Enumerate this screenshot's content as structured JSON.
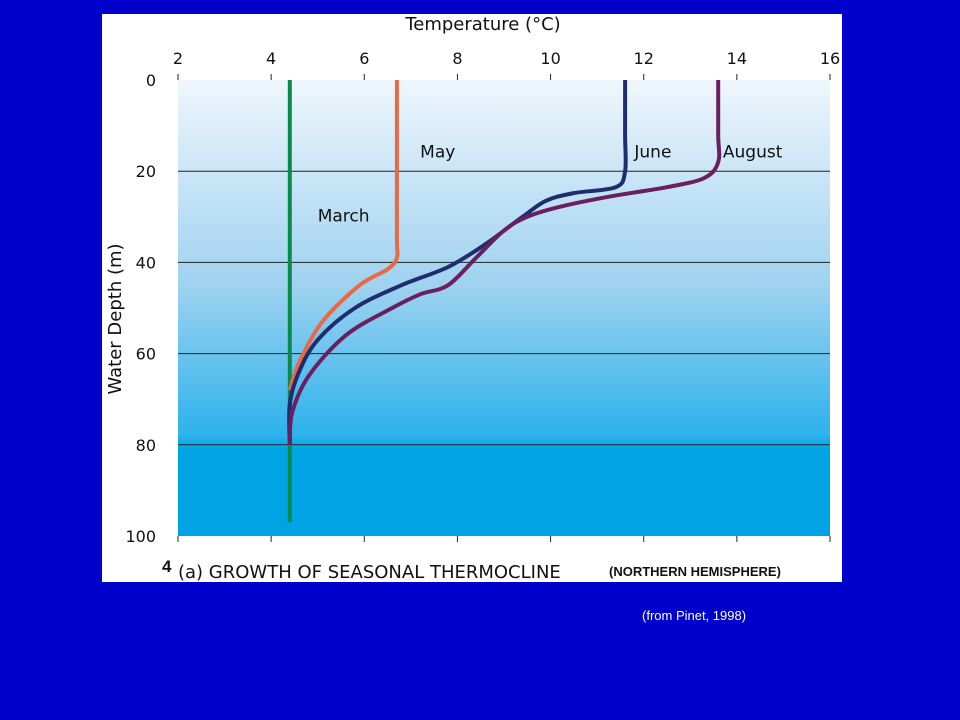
{
  "slide": {
    "figure_number": "4",
    "caption": "(a) GROWTH OF SEASONAL THERMOCLINE",
    "caption_suffix": "(NORTHERN HEMISPHERE)",
    "credit": "(from Pinet, 1998)",
    "background_color": "#0000cc"
  },
  "chart_data": {
    "type": "line",
    "xlabel": "Temperature (°C)",
    "ylabel": "Water Depth (m)",
    "xlim": [
      2,
      16
    ],
    "ylim": [
      0,
      100
    ],
    "y_inverted": true,
    "x_axis_position": "top",
    "x_ticks": [
      2,
      4,
      6,
      8,
      10,
      12,
      14,
      16
    ],
    "y_ticks": [
      0,
      20,
      40,
      60,
      80,
      100
    ],
    "grid": "horizontal",
    "background": {
      "type": "vertical-gradient",
      "colors": [
        "#eef6fc",
        "#9fd2f0",
        "#2cb2ec",
        "#00a4e4"
      ]
    },
    "series": [
      {
        "name": "March",
        "color": "#0a8a4a",
        "label_at": [
          5.0,
          31
        ],
        "points": [
          [
            4.4,
            0
          ],
          [
            4.4,
            20
          ],
          [
            4.4,
            40
          ],
          [
            4.4,
            60
          ],
          [
            4.4,
            80
          ],
          [
            4.4,
            97
          ]
        ]
      },
      {
        "name": "May",
        "color": "#e86a44",
        "label_at": [
          7.2,
          17
        ],
        "points": [
          [
            6.7,
            0
          ],
          [
            6.7,
            20
          ],
          [
            6.7,
            35
          ],
          [
            6.7,
            39
          ],
          [
            6.5,
            41.5
          ],
          [
            5.9,
            45
          ],
          [
            5.1,
            53
          ],
          [
            4.6,
            62
          ],
          [
            4.4,
            68
          ]
        ]
      },
      {
        "name": "June",
        "color": "#1f2d6e",
        "label_at": [
          11.8,
          17
        ],
        "points": [
          [
            11.6,
            0
          ],
          [
            11.6,
            12
          ],
          [
            11.6,
            20
          ],
          [
            11.4,
            23.5
          ],
          [
            10.5,
            24.8
          ],
          [
            9.9,
            26.5
          ],
          [
            9.4,
            30
          ],
          [
            8.6,
            36
          ],
          [
            7.8,
            41
          ],
          [
            6.8,
            45
          ],
          [
            5.8,
            50
          ],
          [
            5.0,
            57
          ],
          [
            4.6,
            64
          ],
          [
            4.4,
            71
          ],
          [
            4.4,
            80
          ]
        ]
      },
      {
        "name": "August",
        "color": "#6b1f5e",
        "label_at": [
          13.7,
          17
        ],
        "points": [
          [
            13.6,
            0
          ],
          [
            13.6,
            12
          ],
          [
            13.6,
            18
          ],
          [
            13.3,
            21.5
          ],
          [
            12.5,
            23.5
          ],
          [
            11.3,
            25.5
          ],
          [
            10.2,
            27.8
          ],
          [
            9.5,
            30
          ],
          [
            9.0,
            33
          ],
          [
            8.4,
            39
          ],
          [
            7.8,
            45
          ],
          [
            7.2,
            47
          ],
          [
            6.6,
            50
          ],
          [
            5.6,
            56
          ],
          [
            4.8,
            65
          ],
          [
            4.45,
            73
          ],
          [
            4.4,
            80
          ]
        ]
      }
    ]
  }
}
